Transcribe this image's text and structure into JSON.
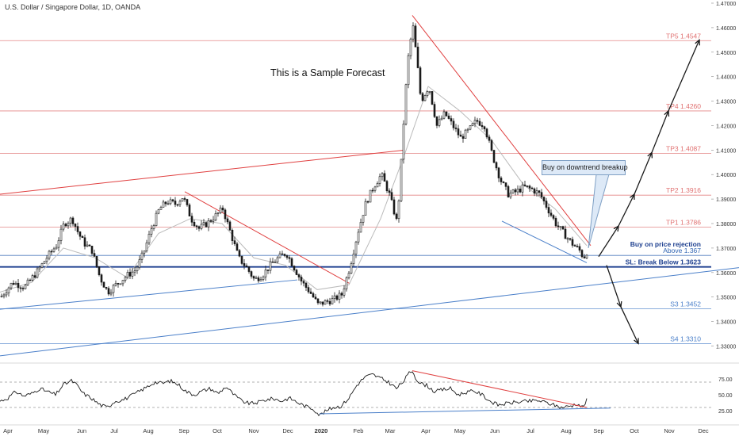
{
  "header": {
    "title": "U.S. Dollar / Singapore Dollar, 1D, OANDA",
    "forecast_note": "This is a Sample Forecast"
  },
  "chart_data": [
    {
      "type": "candlestick",
      "title": "U.S. Dollar / Singapore Dollar, 1D, OANDA",
      "x_axis": {
        "ticks": [
          "Apr",
          "May",
          "Jun",
          "Jul",
          "Aug",
          "Sep",
          "Oct",
          "Nov",
          "Dec",
          "2020",
          "Feb",
          "Mar",
          "Apr",
          "May",
          "Jun",
          "Jul",
          "Aug",
          "Sep",
          "Oct",
          "Nov",
          "Dec"
        ]
      },
      "y_axis": {
        "ylim": [
          1.324,
          1.47
        ],
        "ticks": [
          1.33,
          1.34,
          1.35,
          1.36,
          1.37,
          1.38,
          1.39,
          1.4,
          1.41,
          1.42,
          1.43,
          1.44,
          1.45,
          1.46,
          1.47
        ],
        "tick_labels": [
          "1.33000",
          "1.34000",
          "1.35000",
          "1.36000",
          "1.37000",
          "1.38000",
          "1.39000",
          "1.40000",
          "1.41000",
          "1.42000",
          "1.43000",
          "1.44000",
          "1.45000",
          "1.46000",
          "1.47000"
        ],
        "position": "right"
      },
      "grid": false,
      "price_path": [
        [
          0,
          1.35
        ],
        [
          15,
          1.356
        ],
        [
          30,
          1.354
        ],
        [
          45,
          1.36
        ],
        [
          60,
          1.367
        ],
        [
          70,
          1.371
        ],
        [
          80,
          1.38
        ],
        [
          90,
          1.382
        ],
        [
          98,
          1.376
        ],
        [
          105,
          1.372
        ],
        [
          115,
          1.369
        ],
        [
          125,
          1.358
        ],
        [
          135,
          1.352
        ],
        [
          145,
          1.355
        ],
        [
          160,
          1.359
        ],
        [
          170,
          1.361
        ],
        [
          180,
          1.368
        ],
        [
          190,
          1.378
        ],
        [
          200,
          1.386
        ],
        [
          210,
          1.389
        ],
        [
          220,
          1.388
        ],
        [
          230,
          1.391
        ],
        [
          240,
          1.382
        ],
        [
          250,
          1.378
        ],
        [
          260,
          1.38
        ],
        [
          270,
          1.383
        ],
        [
          280,
          1.386
        ],
        [
          290,
          1.376
        ],
        [
          300,
          1.366
        ],
        [
          310,
          1.362
        ],
        [
          320,
          1.357
        ],
        [
          330,
          1.359
        ],
        [
          340,
          1.363
        ],
        [
          350,
          1.366
        ],
        [
          360,
          1.368
        ],
        [
          370,
          1.362
        ],
        [
          380,
          1.356
        ],
        [
          390,
          1.352
        ],
        [
          400,
          1.347
        ],
        [
          410,
          1.348
        ],
        [
          420,
          1.349
        ],
        [
          430,
          1.351
        ],
        [
          440,
          1.362
        ],
        [
          450,
          1.376
        ],
        [
          460,
          1.388
        ],
        [
          470,
          1.395
        ],
        [
          480,
          1.4
        ],
        [
          490,
          1.392
        ],
        [
          500,
          1.38
        ],
        [
          505,
          1.405
        ],
        [
          510,
          1.432
        ],
        [
          515,
          1.452
        ],
        [
          520,
          1.46
        ],
        [
          525,
          1.446
        ],
        [
          530,
          1.43
        ],
        [
          540,
          1.436
        ],
        [
          550,
          1.42
        ],
        [
          560,
          1.425
        ],
        [
          570,
          1.42
        ],
        [
          580,
          1.415
        ],
        [
          590,
          1.418
        ],
        [
          600,
          1.422
        ],
        [
          610,
          1.42
        ],
        [
          620,
          1.408
        ],
        [
          630,
          1.398
        ],
        [
          640,
          1.392
        ],
        [
          650,
          1.393
        ],
        [
          660,
          1.395
        ],
        [
          670,
          1.394
        ],
        [
          680,
          1.392
        ],
        [
          690,
          1.386
        ],
        [
          700,
          1.38
        ],
        [
          710,
          1.376
        ],
        [
          720,
          1.372
        ],
        [
          730,
          1.369
        ],
        [
          735,
          1.366
        ],
        [
          740,
          1.369
        ]
      ],
      "ma_path": [
        [
          0,
          1.352
        ],
        [
          40,
          1.356
        ],
        [
          80,
          1.37
        ],
        [
          120,
          1.366
        ],
        [
          160,
          1.358
        ],
        [
          200,
          1.376
        ],
        [
          240,
          1.382
        ],
        [
          280,
          1.38
        ],
        [
          320,
          1.366
        ],
        [
          360,
          1.363
        ],
        [
          400,
          1.353
        ],
        [
          440,
          1.355
        ],
        [
          480,
          1.382
        ],
        [
          510,
          1.408
        ],
        [
          540,
          1.436
        ],
        [
          580,
          1.426
        ],
        [
          620,
          1.414
        ],
        [
          660,
          1.396
        ],
        [
          700,
          1.386
        ],
        [
          740,
          1.371
        ]
      ],
      "levels": [
        {
          "label": "TP5 1.4547",
          "value": 1.4547,
          "color": "#e07070",
          "style": "solid"
        },
        {
          "label": "TP4 1.4260",
          "value": 1.426,
          "color": "#e07070",
          "style": "solid"
        },
        {
          "label": "TP3 1.4087",
          "value": 1.4087,
          "color": "#e07070",
          "style": "solid"
        },
        {
          "label": "TP2 1.3916",
          "value": 1.3916,
          "color": "#e07070",
          "style": "solid"
        },
        {
          "label": "TP1 1.3786",
          "value": 1.3786,
          "color": "#e07070",
          "style": "solid"
        },
        {
          "label": "Above 1.367",
          "value": 1.367,
          "color": "#3366b3",
          "style": "solid"
        },
        {
          "label": "SL: Break Below 1.3623",
          "value": 1.3623,
          "color": "#1d3f8f",
          "style": "bold"
        },
        {
          "label": "S3 1.3452",
          "value": 1.3452,
          "color": "#4a7fc9",
          "style": "solid"
        },
        {
          "label": "S4 1.3310",
          "value": 1.331,
          "color": "#4a7fc9",
          "style": "solid"
        }
      ],
      "label_buy_on_rejection": "Buy on price rejection",
      "annotations": {
        "callout": "Buy on downtrend breakup"
      },
      "trendlines": [
        {
          "color": "#e04040",
          "from": [
            0,
            1.392
          ],
          "to": [
            510,
            1.41
          ]
        },
        {
          "color": "#e04040",
          "from": [
            233,
            1.393
          ],
          "to": [
            441,
            1.3555
          ]
        },
        {
          "color": "#e04040",
          "from": [
            520,
            1.465
          ],
          "to": [
            745,
            1.371
          ]
        },
        {
          "color": "#4a7fc9",
          "from": [
            0,
            1.345
          ],
          "to": [
            375,
            1.357
          ]
        },
        {
          "color": "#4a7fc9",
          "from": [
            0,
            1.326
          ],
          "to": [
            932,
            1.362
          ]
        },
        {
          "color": "#4a7fc9",
          "from": [
            633,
            1.381
          ],
          "to": [
            740,
            1.364
          ]
        }
      ],
      "forecast_path_up": [
        [
          755,
          1.3665
        ],
        [
          780,
          1.379
        ],
        [
          800,
          1.392
        ],
        [
          822,
          1.409
        ],
        [
          843,
          1.426
        ],
        [
          882,
          1.455
        ]
      ],
      "forecast_path_down": [
        [
          765,
          1.363
        ],
        [
          783,
          1.346
        ],
        [
          805,
          1.331
        ]
      ]
    },
    {
      "type": "line",
      "indicator": "RSI",
      "y_axis": {
        "ticks": [
          25,
          50,
          75
        ],
        "tick_labels": [
          "25.00",
          "50.00",
          "75.00"
        ],
        "ylim": [
          10,
          95
        ],
        "position": "right"
      },
      "reference_lines": [
        30,
        70
      ],
      "values_path": [
        [
          0,
          40
        ],
        [
          10,
          45
        ],
        [
          20,
          55
        ],
        [
          30,
          48
        ],
        [
          40,
          52
        ],
        [
          50,
          60
        ],
        [
          60,
          55
        ],
        [
          70,
          50
        ],
        [
          80,
          66
        ],
        [
          90,
          72
        ],
        [
          95,
          68
        ],
        [
          100,
          60
        ],
        [
          105,
          52
        ],
        [
          115,
          45
        ],
        [
          125,
          35
        ],
        [
          135,
          30
        ],
        [
          145,
          40
        ],
        [
          155,
          42
        ],
        [
          165,
          48
        ],
        [
          175,
          55
        ],
        [
          185,
          62
        ],
        [
          195,
          70
        ],
        [
          205,
          68
        ],
        [
          215,
          72
        ],
        [
          225,
          66
        ],
        [
          235,
          55
        ],
        [
          245,
          50
        ],
        [
          255,
          56
        ],
        [
          265,
          60
        ],
        [
          275,
          52
        ],
        [
          285,
          63
        ],
        [
          295,
          50
        ],
        [
          305,
          40
        ],
        [
          315,
          36
        ],
        [
          325,
          38
        ],
        [
          335,
          42
        ],
        [
          345,
          44
        ],
        [
          355,
          40
        ],
        [
          365,
          45
        ],
        [
          375,
          38
        ],
        [
          385,
          32
        ],
        [
          395,
          28
        ],
        [
          403,
          18
        ],
        [
          412,
          25
        ],
        [
          420,
          30
        ],
        [
          430,
          32
        ],
        [
          440,
          45
        ],
        [
          450,
          65
        ],
        [
          460,
          78
        ],
        [
          470,
          82
        ],
        [
          480,
          76
        ],
        [
          490,
          70
        ],
        [
          500,
          60
        ],
        [
          508,
          70
        ],
        [
          516,
          84
        ],
        [
          520,
          88
        ],
        [
          525,
          75
        ],
        [
          530,
          68
        ],
        [
          538,
          65
        ],
        [
          548,
          55
        ],
        [
          558,
          58
        ],
        [
          568,
          60
        ],
        [
          578,
          50
        ],
        [
          588,
          54
        ],
        [
          598,
          56
        ],
        [
          608,
          50
        ],
        [
          618,
          40
        ],
        [
          628,
          34
        ],
        [
          638,
          36
        ],
        [
          648,
          38
        ],
        [
          658,
          39
        ],
        [
          668,
          40
        ],
        [
          678,
          41
        ],
        [
          688,
          38
        ],
        [
          698,
          34
        ],
        [
          708,
          30
        ],
        [
          718,
          32
        ],
        [
          728,
          36
        ],
        [
          735,
          30
        ],
        [
          741,
          44
        ]
      ],
      "trendlines": [
        {
          "color": "#e04040",
          "from": [
            520,
            88
          ],
          "to": [
            740,
            30
          ]
        },
        {
          "color": "#4a7fc9",
          "from": [
            403,
            20
          ],
          "to": [
            770,
            29
          ]
        }
      ]
    }
  ],
  "colors": {
    "candle_up": "#1a1a1a",
    "candle_down": "#1a1a1a",
    "ma": "#bbbbbb",
    "resistance": "#e04040",
    "support": "#4a7fc9",
    "rsi": "#1a1a1a"
  }
}
